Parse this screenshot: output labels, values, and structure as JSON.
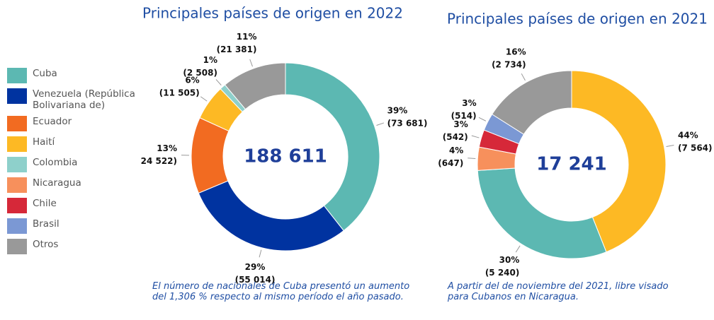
{
  "legend": [
    {
      "name": "Cuba",
      "color": "#5cb8b2"
    },
    {
      "name": "Venezuela (República Bolivariana de)",
      "color": "#0033a0"
    },
    {
      "name": "Ecuador",
      "color": "#f26b21"
    },
    {
      "name": "Haití",
      "color": "#fdb924"
    },
    {
      "name": "Colombia",
      "color": "#8ed0cb"
    },
    {
      "name": "Nicaragua",
      "color": "#f7905c"
    },
    {
      "name": "Chile",
      "color": "#d62839"
    },
    {
      "name": "Brasil",
      "color": "#7b98d4"
    },
    {
      "name": "Otros",
      "color": "#999999"
    }
  ],
  "chart_data": [
    {
      "type": "donut",
      "title": "Principales países de origen en 2022",
      "categories": [
        "Cuba",
        "Venezuela (República Bolivariana de)",
        "Ecuador",
        "Haití",
        "Colombia",
        "Otros"
      ],
      "colors": [
        "#5cb8b2",
        "#0033a0",
        "#f26b21",
        "#fdb924",
        "#8ed0cb",
        "#999999"
      ],
      "values": [
        39,
        29,
        13,
        6,
        1,
        11
      ],
      "value_labels": [
        "39%",
        "29%",
        "13%",
        "6%",
        "1%",
        "11%"
      ],
      "counts": [
        73681,
        55014,
        24522,
        11505,
        2508,
        21381
      ],
      "count_labels": [
        "(73 681)",
        "(55 014)",
        "24 522)",
        "(11 505)",
        "(2 508)",
        "(21 381)"
      ],
      "center_label": "188 611",
      "note": "El número de nacionales de Cuba presentó un aumento del 1,306 % respecto al mismo período el año pasado."
    },
    {
      "type": "donut",
      "title": "Principales países de origen en 2021",
      "categories": [
        "Haití",
        "Cuba",
        "Nicaragua",
        "Chile",
        "Brasil",
        "Otros"
      ],
      "colors": [
        "#fdb924",
        "#5cb8b2",
        "#f7905c",
        "#d62839",
        "#7b98d4",
        "#999999"
      ],
      "values": [
        44,
        30,
        4,
        3,
        3,
        16
      ],
      "value_labels": [
        "44%",
        "30%",
        "4%",
        "3%",
        "3%",
        "16%"
      ],
      "counts": [
        7564,
        5240,
        647,
        542,
        514,
        2734
      ],
      "count_labels": [
        "(7 564)",
        "(5 240)",
        "(647)",
        "(542)",
        "(514)",
        "(2 734)"
      ],
      "center_label": "17 241",
      "note": "A partir del de noviembre del 2021, libre visado para Cubanos en Nicaragua."
    }
  ]
}
